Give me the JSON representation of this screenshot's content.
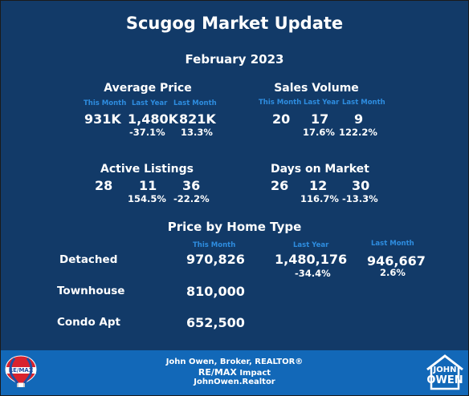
{
  "title": "Scugog Market Update",
  "month": "February 2023",
  "labels": {
    "this_month": "This Month",
    "last_year": "Last Year",
    "last_month": "Last Month"
  },
  "average_price": {
    "heading": "Average Price",
    "this_month": "931K",
    "last_year": "1,480K",
    "last_month": "821K",
    "last_year_change": "-37.1%",
    "last_month_change": "13.3%"
  },
  "sales_volume": {
    "heading": "Sales Volume",
    "this_month": "20",
    "last_year": "17",
    "last_month": "9",
    "last_year_change": "17.6%",
    "last_month_change": "122.2%"
  },
  "active_listings": {
    "heading": "Active Listings",
    "this_month": "28",
    "last_year": "11",
    "last_month": "36",
    "last_year_change": "154.5%",
    "last_month_change": "-22.2%"
  },
  "days_on_market": {
    "heading": "Days on Market",
    "this_month": "26",
    "last_year": "12",
    "last_month": "30",
    "last_year_change": "116.7%",
    "last_month_change": "-13.3%"
  },
  "price_by_type": {
    "heading": "Price by Home Type",
    "detached": {
      "label": "Detached",
      "this_month": "970,826",
      "last_year": "1,480,176",
      "last_month": "946,667",
      "last_year_change": "-34.4%",
      "last_month_change": "2.6%"
    },
    "townhouse": {
      "label": "Townhouse",
      "this_month": "810,000"
    },
    "condo": {
      "label": "Condo Apt",
      "this_month": "652,500"
    }
  },
  "footer": {
    "line1": "John Owen, Broker, REALTOR®",
    "line2_brand": "RE/MAX",
    "line2_rest": "Impact",
    "line3": "JohnOwen.Realtor",
    "remax_badge": "RE/MAX",
    "logo_line1": "JOHN",
    "logo_line2": "OWEN"
  },
  "colors": {
    "background": "#123a68",
    "footer": "#1268b8",
    "accent": "#2e8de0"
  }
}
